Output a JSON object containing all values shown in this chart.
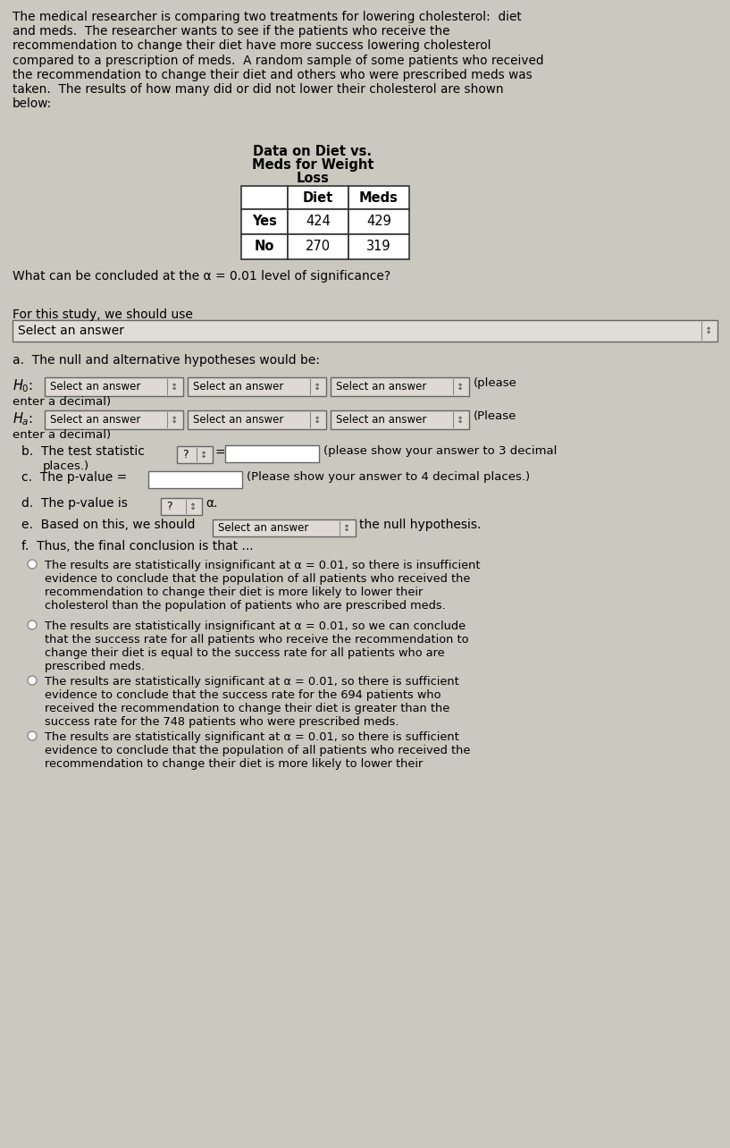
{
  "bg_color": "#cbc8c0",
  "text_color": "#000000",
  "intro_text": "The medical researcher is comparing two treatments for lowering cholesterol:  diet\nand meds.  The researcher wants to see if the patients who receive the\nrecommendation to change their diet have more success lowering cholesterol\ncompared to a prescription of meds.  A random sample of some patients who received\nthe recommendation to change their diet and others who were prescribed meds was\ntaken.  The results of how many did or did not lower their cholesterol are shown\nbelow:",
  "table_title_line1": "Data on Diet vs.",
  "table_title_line2": "Meds for Weight",
  "table_title_line3": "Loss",
  "col_headers": [
    "",
    "Diet",
    "Meds"
  ],
  "row1": [
    "Yes",
    "424",
    "429"
  ],
  "row2": [
    "No",
    "270",
    "319"
  ],
  "alpha_line": "What can be concluded at the α = 0.01 level of significance?",
  "for_study_line": "For this study, we should use",
  "dropdown_text": "Select an answer",
  "section_a": "a.  The null and alternative hypotheses would be:",
  "section_b_pre": "b.  The test statistic",
  "section_b_post": "(please show your answer to 3 decimal",
  "section_b_post2": "places.)",
  "section_c_pre": "c.  The p-value =",
  "section_c_post": "(Please show your answer to 4 decimal places.)",
  "section_d_pre": "d.  The p-value is",
  "section_d_post": "α.",
  "section_e_pre": "e.  Based on this, we should",
  "section_e_post": "the null hypothesis.",
  "section_f": "f.  Thus, the final conclusion is that ...",
  "c1": "The results are statistically insignificant at α = 0.01, so there is insufficient\nevidence to conclude that the population of all patients who received the\nrecommendation to change their diet is more likely to lower their\ncholesterol than the population of patients who are prescribed meds.",
  "c2": "The results are statistically insignificant at α = 0.01, so we can conclude\nthat the success rate for all patients who receive the recommendation to\nchange their diet is equal to the success rate for all patients who are\nprescribed meds.",
  "c3": "The results are statistically significant at α = 0.01, so there is sufficient\nevidence to conclude that the success rate for the 694 patients who\nreceived the recommendation to change their diet is greater than the\nsuccess rate for the 748 patients who were prescribed meds.",
  "c4": "The results are statistically significant at α = 0.01, so there is sufficient\nevidence to conclude that the population of all patients who received the\nrecommendation to change their diet is more likely to lower their"
}
